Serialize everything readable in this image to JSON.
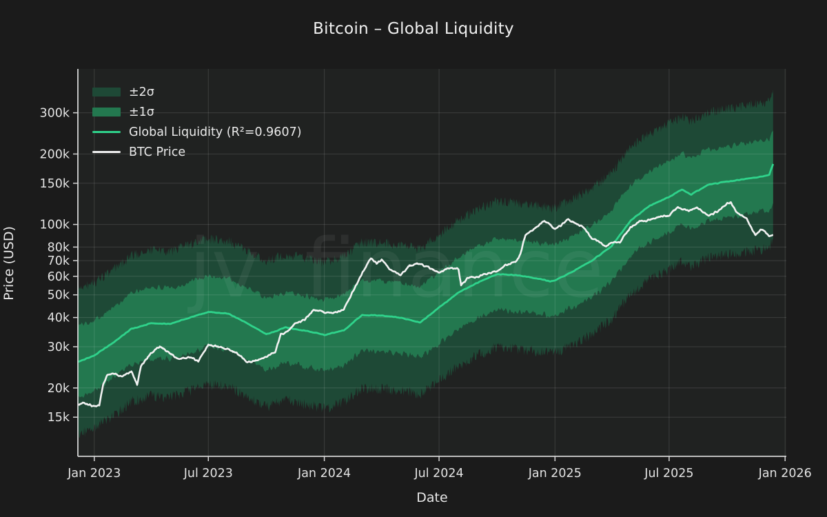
{
  "figure": {
    "title": "Bitcoin – Global Liquidity",
    "xlabel": "Date",
    "ylabel": "Price (USD)",
    "watermark": "jv finance"
  },
  "chart_data": {
    "type": "line",
    "title": "Bitcoin – Global Liquidity",
    "xlabel": "Date",
    "ylabel": "Price (USD)",
    "y_scale": "log",
    "grid": true,
    "legend_position": "upper-left",
    "unit": "thousand USD",
    "x_unit": "days since 2023-01-01",
    "x_domain": [
      -26,
      1098
    ],
    "y_domain": [
      10200,
      462000
    ],
    "x_ticks": [
      {
        "d": 0,
        "label": "Jan 2023"
      },
      {
        "d": 181,
        "label": "Jul 2023"
      },
      {
        "d": 365,
        "label": "Jan 2024"
      },
      {
        "d": 547,
        "label": "Jul 2024"
      },
      {
        "d": 731,
        "label": "Jan 2025"
      },
      {
        "d": 912,
        "label": "Jul 2025"
      },
      {
        "d": 1096,
        "label": "Jan 2026"
      }
    ],
    "y_ticks": [
      {
        "v": 15000,
        "label": "15k"
      },
      {
        "v": 20000,
        "label": "20k"
      },
      {
        "v": 30000,
        "label": "30k"
      },
      {
        "v": 40000,
        "label": "40k"
      },
      {
        "v": 50000,
        "label": "50k"
      },
      {
        "v": 60000,
        "label": "60k"
      },
      {
        "v": 70000,
        "label": "70k"
      },
      {
        "v": 80000,
        "label": "80k"
      },
      {
        "v": 100000,
        "label": "100k"
      },
      {
        "v": 150000,
        "label": "150k"
      },
      {
        "v": 200000,
        "label": "200k"
      },
      {
        "v": 300000,
        "label": "300k"
      }
    ],
    "legend": [
      {
        "label": "±2σ",
        "type": "band",
        "color": "#1e4936"
      },
      {
        "label": "±1σ",
        "type": "band",
        "color": "#23784f"
      },
      {
        "label": "Global Liquidity (R²=0.9607)",
        "type": "line",
        "color": "#2fd38b"
      },
      {
        "label": "BTC Price",
        "type": "line",
        "color": "#f2f2f2"
      }
    ],
    "bands": {
      "sigma1_factor": 1.42,
      "sigma2_factor": 2.05,
      "sigma1_color": "#23784f",
      "sigma2_color": "#1e4936"
    },
    "colors": {
      "figure_bg": "#1b1b1b",
      "plot_bg": "#202221",
      "grid": "rgba(255,255,255,0.13)",
      "spine": "#d6d6d6",
      "tick_label": "#e3e3e3",
      "model_line": "#2fd38b",
      "btc_line": "#f2f2f2",
      "watermark": "rgba(255,255,255,0.06)"
    },
    "series": [
      {
        "name": "Global Liquidity",
        "color": "#2fd38b",
        "points": [
          [
            -26,
            26.0
          ],
          [
            0,
            27.5
          ],
          [
            31,
            31.2
          ],
          [
            59,
            35.8
          ],
          [
            90,
            38.0
          ],
          [
            120,
            37.4
          ],
          [
            151,
            39.8
          ],
          [
            181,
            42.4
          ],
          [
            212,
            41.6
          ],
          [
            243,
            37.6
          ],
          [
            273,
            34.0
          ],
          [
            304,
            36.4
          ],
          [
            334,
            35.0
          ],
          [
            365,
            33.6
          ],
          [
            396,
            35.4
          ],
          [
            425,
            41.0
          ],
          [
            456,
            40.6
          ],
          [
            486,
            40.0
          ],
          [
            517,
            38.2
          ],
          [
            547,
            44.0
          ],
          [
            578,
            51.0
          ],
          [
            608,
            56.5
          ],
          [
            639,
            61.4
          ],
          [
            670,
            60.4
          ],
          [
            700,
            59.0
          ],
          [
            724,
            57.4
          ],
          [
            731,
            57.8
          ],
          [
            762,
            63.2
          ],
          [
            790,
            70.0
          ],
          [
            820,
            80.5
          ],
          [
            851,
            104.0
          ],
          [
            882,
            120.0
          ],
          [
            912,
            131.0
          ],
          [
            932,
            141.5
          ],
          [
            947,
            134.8
          ],
          [
            974,
            147.0
          ],
          [
            1004,
            152.0
          ],
          [
            1035,
            157.5
          ],
          [
            1065,
            161.5
          ],
          [
            1071,
            163.0
          ],
          [
            1077,
            181.0
          ]
        ]
      },
      {
        "name": "BTC Price",
        "color": "#f2f2f2",
        "points": [
          [
            -26,
            17.2
          ],
          [
            -18,
            17.3
          ],
          [
            -10,
            16.9
          ],
          [
            0,
            16.6
          ],
          [
            8,
            16.9
          ],
          [
            14,
            20.6
          ],
          [
            21,
            22.7
          ],
          [
            31,
            23.1
          ],
          [
            45,
            22.1
          ],
          [
            59,
            23.4
          ],
          [
            68,
            20.6
          ],
          [
            74,
            24.9
          ],
          [
            90,
            28.4
          ],
          [
            104,
            30.2
          ],
          [
            120,
            28.2
          ],
          [
            134,
            26.9
          ],
          [
            151,
            27.1
          ],
          [
            165,
            25.7
          ],
          [
            181,
            30.4
          ],
          [
            195,
            30.2
          ],
          [
            212,
            29.2
          ],
          [
            226,
            28.1
          ],
          [
            243,
            25.9
          ],
          [
            257,
            26.6
          ],
          [
            273,
            27.1
          ],
          [
            287,
            28.4
          ],
          [
            296,
            34.0
          ],
          [
            304,
            34.6
          ],
          [
            318,
            37.4
          ],
          [
            334,
            38.8
          ],
          [
            348,
            43.0
          ],
          [
            365,
            42.5
          ],
          [
            379,
            41.6
          ],
          [
            396,
            43.1
          ],
          [
            410,
            51.8
          ],
          [
            425,
            62.3
          ],
          [
            439,
            71.2
          ],
          [
            448,
            67.5
          ],
          [
            456,
            69.8
          ],
          [
            470,
            63.9
          ],
          [
            486,
            60.5
          ],
          [
            500,
            66.2
          ],
          [
            517,
            68.2
          ],
          [
            531,
            66.0
          ],
          [
            547,
            62.8
          ],
          [
            561,
            64.6
          ],
          [
            578,
            64.8
          ],
          [
            582,
            54.8
          ],
          [
            592,
            59.4
          ],
          [
            604,
            58.9
          ],
          [
            618,
            60.3
          ],
          [
            639,
            63.2
          ],
          [
            653,
            67.4
          ],
          [
            670,
            69.8
          ],
          [
            676,
            74.5
          ],
          [
            684,
            90.2
          ],
          [
            700,
            97.8
          ],
          [
            714,
            104.2
          ],
          [
            724,
            99.0
          ],
          [
            731,
            94.4
          ],
          [
            745,
            100.8
          ],
          [
            752,
            104.8
          ],
          [
            762,
            102.1
          ],
          [
            776,
            96.8
          ],
          [
            790,
            86.2
          ],
          [
            804,
            83.8
          ],
          [
            812,
            81.0
          ],
          [
            820,
            85.1
          ],
          [
            834,
            84.3
          ],
          [
            851,
            97.2
          ],
          [
            865,
            103.6
          ],
          [
            882,
            104.5
          ],
          [
            896,
            106.8
          ],
          [
            912,
            108.4
          ],
          [
            926,
            119.2
          ],
          [
            943,
            114.3
          ],
          [
            957,
            117.3
          ],
          [
            974,
            109.4
          ],
          [
            988,
            114.8
          ],
          [
            1004,
            122.5
          ],
          [
            1010,
            123.8
          ],
          [
            1018,
            112.3
          ],
          [
            1035,
            106.0
          ],
          [
            1049,
            89.8
          ],
          [
            1057,
            95.0
          ],
          [
            1065,
            92.3
          ],
          [
            1071,
            88.5
          ],
          [
            1077,
            90.5
          ]
        ]
      }
    ]
  }
}
